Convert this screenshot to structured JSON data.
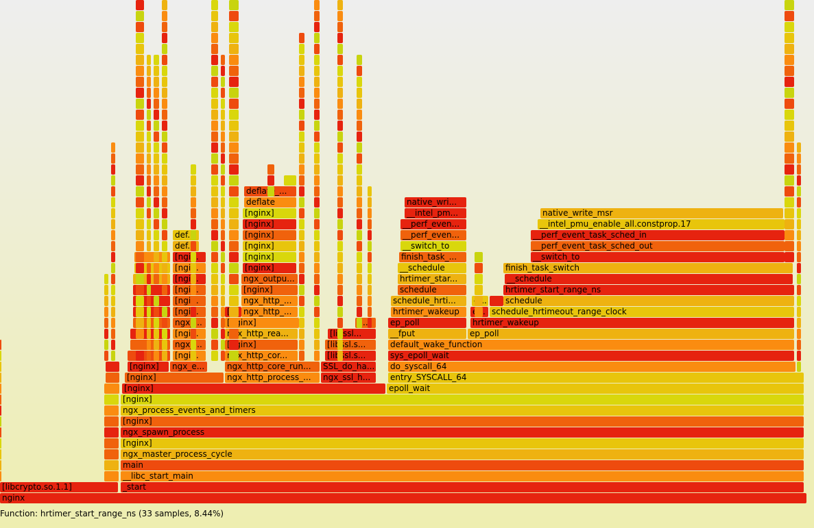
{
  "status": {
    "details": "Function: hrtimer_start_range_ns (33 samples, 8.44%)"
  },
  "palette": {
    "background_top": "#eeeeee",
    "background_bottom": "#eeeeb0",
    "frame_colors": [
      "#e6230f",
      "#f0620c",
      "#fa8c10",
      "#eeb211",
      "#e8c50c",
      "#d9d70c",
      "#ee4b0e",
      "#c8d40f"
    ]
  },
  "flamegraph": {
    "frames": [
      {
        "d": 0,
        "x0": 0,
        "x1": 1176,
        "label": "nginx",
        "c": 0
      },
      {
        "d": 1,
        "x0": 0,
        "x1": 172,
        "label": "[libcrypto.so.1.1]",
        "c": 0
      },
      {
        "d": 1,
        "x0": 176,
        "x1": 1172,
        "label": "_start",
        "c": 0
      },
      {
        "d": 2,
        "x0": 152,
        "x1": 173,
        "label": "",
        "c": 2
      },
      {
        "d": 2,
        "x0": 176,
        "x1": 1172,
        "label": "__libc_start_main",
        "c": 2
      },
      {
        "d": 3,
        "x0": 152,
        "x1": 173,
        "label": "",
        "c": 3
      },
      {
        "d": 3,
        "x0": 176,
        "x1": 1172,
        "label": "main",
        "c": 6
      },
      {
        "d": 4,
        "x0": 152,
        "x1": 173,
        "label": "",
        "c": 1
      },
      {
        "d": 4,
        "x0": 176,
        "x1": 1172,
        "label": "ngx_master_process_cycle",
        "c": 3
      },
      {
        "d": 5,
        "x0": 152,
        "x1": 173,
        "label": "",
        "c": 1
      },
      {
        "d": 5,
        "x0": 176,
        "x1": 1172,
        "label": "[nginx]",
        "c": 4
      },
      {
        "d": 6,
        "x0": 152,
        "x1": 173,
        "label": "",
        "c": 0
      },
      {
        "d": 6,
        "x0": 176,
        "x1": 1172,
        "label": "ngx_spawn_process",
        "c": 0
      },
      {
        "d": 7,
        "x0": 152,
        "x1": 173,
        "label": "",
        "c": 1
      },
      {
        "d": 7,
        "x0": 176,
        "x1": 1172,
        "label": "[nginx]",
        "c": 1
      },
      {
        "d": 8,
        "x0": 152,
        "x1": 173,
        "label": "",
        "c": 2
      },
      {
        "d": 8,
        "x0": 176,
        "x1": 1172,
        "label": "ngx_process_events_and_timers",
        "c": 4
      },
      {
        "d": 9,
        "x0": 152,
        "x1": 173,
        "label": "",
        "c": 5
      },
      {
        "d": 9,
        "x0": 176,
        "x1": 1172,
        "label": "[nginx]",
        "c": 5
      },
      {
        "d": 10,
        "x0": 152,
        "x1": 174,
        "label": "",
        "c": 2
      },
      {
        "d": 10,
        "x0": 178,
        "x1": 562,
        "label": "[nginx]",
        "c": 0
      },
      {
        "d": 10,
        "x0": 564,
        "x1": 1172,
        "label": "epoll_wait",
        "c": 4
      },
      {
        "d": 11,
        "x0": 154,
        "x1": 174,
        "label": "",
        "c": 1
      },
      {
        "d": 11,
        "x0": 182,
        "x1": 326,
        "label": "[nginx]",
        "c": 1
      },
      {
        "d": 11,
        "x0": 328,
        "x1": 466,
        "label": "ngx_http_process_...",
        "c": 2
      },
      {
        "d": 11,
        "x0": 468,
        "x1": 548,
        "label": "ngx_ssl_h...",
        "c": 0
      },
      {
        "d": 11,
        "x0": 566,
        "x1": 1172,
        "label": "entry_SYSCALL_64",
        "c": 4
      },
      {
        "d": 12,
        "x0": 154,
        "x1": 174,
        "label": "",
        "c": 0
      },
      {
        "d": 12,
        "x0": 186,
        "x1": 246,
        "label": "[nginx]",
        "c": 0
      },
      {
        "d": 12,
        "x0": 248,
        "x1": 302,
        "label": "ngx_e...",
        "c": 6
      },
      {
        "d": 12,
        "x0": 328,
        "x1": 466,
        "label": "ngx_http_core_run...",
        "c": 1
      },
      {
        "d": 12,
        "x0": 468,
        "x1": 548,
        "label": "SSL_do_ha...",
        "c": 0
      },
      {
        "d": 12,
        "x0": 566,
        "x1": 1160,
        "label": "do_syscall_64",
        "c": 2
      },
      {
        "d": 13,
        "x0": 186,
        "x1": 248,
        "label": "",
        "c": 6
      },
      {
        "d": 13,
        "x0": 252,
        "x1": 300,
        "label": "[ngi...",
        "c": 2
      },
      {
        "d": 13,
        "x0": 328,
        "x1": 434,
        "label": "ngx_http_cor...",
        "c": 2
      },
      {
        "d": 13,
        "x0": 474,
        "x1": 548,
        "label": "[libssl.s...",
        "c": 0
      },
      {
        "d": 13,
        "x0": 566,
        "x1": 1158,
        "label": "sys_epoll_wait",
        "c": 0
      },
      {
        "d": 14,
        "x0": 190,
        "x1": 248,
        "label": "",
        "c": 1
      },
      {
        "d": 14,
        "x0": 252,
        "x1": 300,
        "label": "ngx_...",
        "c": 1
      },
      {
        "d": 14,
        "x0": 328,
        "x1": 434,
        "label": "[nginx]",
        "c": 1
      },
      {
        "d": 14,
        "x0": 474,
        "x1": 548,
        "label": "[libssl.s...",
        "c": 1
      },
      {
        "d": 14,
        "x0": 566,
        "x1": 1158,
        "label": "default_wake_function",
        "c": 2
      },
      {
        "d": 15,
        "x0": 190,
        "x1": 248,
        "label": "",
        "c": 0
      },
      {
        "d": 15,
        "x0": 252,
        "x1": 300,
        "label": "[ngi...",
        "c": 2
      },
      {
        "d": 15,
        "x0": 328,
        "x1": 434,
        "label": "ngx_http_rea...",
        "c": 3
      },
      {
        "d": 15,
        "x0": 478,
        "x1": 548,
        "label": "[libssl...",
        "c": 0
      },
      {
        "d": 15,
        "x0": 566,
        "x1": 680,
        "label": "__fput",
        "c": 3
      },
      {
        "d": 15,
        "x0": 682,
        "x1": 1158,
        "label": "ep_poll",
        "c": 3
      },
      {
        "d": 16,
        "x0": 194,
        "x1": 248,
        "label": "",
        "c": 1
      },
      {
        "d": 16,
        "x0": 252,
        "x1": 300,
        "label": "ngx_...",
        "c": 1
      },
      {
        "d": 16,
        "x0": 328,
        "x1": 436,
        "label": "[nginx]",
        "c": 2
      },
      {
        "d": 16,
        "x0": 518,
        "x1": 548,
        "label": "[l...",
        "c": 1
      },
      {
        "d": 16,
        "x0": 566,
        "x1": 680,
        "label": "ep_poll",
        "c": 0
      },
      {
        "d": 16,
        "x0": 686,
        "x1": 1158,
        "label": "hrtimer_wakeup",
        "c": 0
      },
      {
        "d": 17,
        "x0": 194,
        "x1": 248,
        "label": "",
        "c": 0
      },
      {
        "d": 17,
        "x0": 252,
        "x1": 300,
        "label": "[ngi...",
        "c": 1
      },
      {
        "d": 17,
        "x0": 328,
        "x1": 352,
        "label": "[...",
        "c": 0
      },
      {
        "d": 17,
        "x0": 352,
        "x1": 434,
        "label": "ngx_http_...",
        "c": 2
      },
      {
        "d": 17,
        "x0": 570,
        "x1": 680,
        "label": "hrtimer_wakeup",
        "c": 2
      },
      {
        "d": 17,
        "x0": 686,
        "x1": 712,
        "label": "e...",
        "c": 0
      },
      {
        "d": 17,
        "x0": 714,
        "x1": 1158,
        "label": "schedule_hrtimeout_range_clock",
        "c": 4
      },
      {
        "d": 18,
        "x0": 194,
        "x1": 248,
        "label": "",
        "c": 0
      },
      {
        "d": 18,
        "x0": 252,
        "x1": 300,
        "label": "[ngi...",
        "c": 1
      },
      {
        "d": 18,
        "x0": 352,
        "x1": 434,
        "label": "ngx_http_...",
        "c": 2
      },
      {
        "d": 18,
        "x0": 570,
        "x1": 680,
        "label": "schedule_hrti...",
        "c": 3
      },
      {
        "d": 18,
        "x0": 688,
        "x1": 712,
        "label": "e...",
        "c": 4
      },
      {
        "d": 18,
        "x0": 714,
        "x1": 734,
        "label": "",
        "c": 0
      },
      {
        "d": 18,
        "x0": 734,
        "x1": 1158,
        "label": "schedule",
        "c": 3
      },
      {
        "d": 19,
        "x0": 194,
        "x1": 248,
        "label": "",
        "c": 0
      },
      {
        "d": 19,
        "x0": 252,
        "x1": 300,
        "label": "[ngi...",
        "c": 1
      },
      {
        "d": 19,
        "x0": 352,
        "x1": 434,
        "label": "[nginx]",
        "c": 1
      },
      {
        "d": 19,
        "x0": 580,
        "x1": 680,
        "label": "schedule",
        "c": 1
      },
      {
        "d": 19,
        "x0": 734,
        "x1": 1158,
        "label": "hrtimer_start_range_ns",
        "c": 0
      },
      {
        "d": 20,
        "x0": 194,
        "x1": 248,
        "label": "",
        "c": 3
      },
      {
        "d": 20,
        "x0": 252,
        "x1": 300,
        "label": "[ngi...",
        "c": 0
      },
      {
        "d": 20,
        "x0": 352,
        "x1": 434,
        "label": "ngx_outpu...",
        "c": 1
      },
      {
        "d": 20,
        "x0": 580,
        "x1": 680,
        "label": "hrtimer_star...",
        "c": 3
      },
      {
        "d": 20,
        "x0": 736,
        "x1": 1156,
        "label": "__schedule",
        "c": 0
      },
      {
        "d": 21,
        "x0": 196,
        "x1": 248,
        "label": "",
        "c": 4
      },
      {
        "d": 21,
        "x0": 252,
        "x1": 300,
        "label": "[ngi...",
        "c": 2
      },
      {
        "d": 21,
        "x0": 354,
        "x1": 432,
        "label": "[nginx]",
        "c": 0
      },
      {
        "d": 21,
        "x0": 580,
        "x1": 680,
        "label": "__schedule",
        "c": 4
      },
      {
        "d": 21,
        "x0": 734,
        "x1": 1156,
        "label": "finish_task_switch",
        "c": 3
      },
      {
        "d": 22,
        "x0": 196,
        "x1": 248,
        "label": "",
        "c": 2
      },
      {
        "d": 22,
        "x0": 252,
        "x1": 300,
        "label": "[ngi...",
        "c": 0
      },
      {
        "d": 22,
        "x0": 354,
        "x1": 432,
        "label": "[nginx]",
        "c": 5
      },
      {
        "d": 22,
        "x0": 582,
        "x1": 680,
        "label": "finish_task_...",
        "c": 1
      },
      {
        "d": 22,
        "x0": 774,
        "x1": 1144,
        "label": "__switch_to",
        "c": 0
      },
      {
        "d": 23,
        "x0": 252,
        "x1": 290,
        "label": "def...",
        "c": 3
      },
      {
        "d": 23,
        "x0": 354,
        "x1": 432,
        "label": "[nginx]",
        "c": 4
      },
      {
        "d": 23,
        "x0": 584,
        "x1": 680,
        "label": "__switch_to",
        "c": 5
      },
      {
        "d": 23,
        "x0": 774,
        "x1": 1144,
        "label": "__perf_event_task_sched_out",
        "c": 1
      },
      {
        "d": 24,
        "x0": 252,
        "x1": 290,
        "label": "def...",
        "c": 4
      },
      {
        "d": 24,
        "x0": 354,
        "x1": 432,
        "label": "[nginx]",
        "c": 1
      },
      {
        "d": 24,
        "x0": 584,
        "x1": 680,
        "label": "__perf_even...",
        "c": 1
      },
      {
        "d": 24,
        "x0": 774,
        "x1": 1144,
        "label": "__perf_event_task_sched_in",
        "c": 0
      },
      {
        "d": 25,
        "x0": 354,
        "x1": 432,
        "label": "[nginx]",
        "c": 0
      },
      {
        "d": 25,
        "x0": 584,
        "x1": 680,
        "label": "__perf_even...",
        "c": 0
      },
      {
        "d": 25,
        "x0": 784,
        "x1": 1144,
        "label": "__intel_pmu_enable_all.constprop.17",
        "c": 4
      },
      {
        "d": 26,
        "x0": 354,
        "x1": 432,
        "label": "[nginx]",
        "c": 5
      },
      {
        "d": 26,
        "x0": 590,
        "x1": 680,
        "label": "__intel_pm...",
        "c": 0
      },
      {
        "d": 26,
        "x0": 788,
        "x1": 1142,
        "label": "native_write_msr",
        "c": 3
      },
      {
        "d": 27,
        "x0": 356,
        "x1": 432,
        "label": "deflate",
        "c": 2
      },
      {
        "d": 27,
        "x0": 590,
        "x1": 680,
        "label": "native_wri...",
        "c": 0
      },
      {
        "d": 28,
        "x0": 356,
        "x1": 432,
        "label": "deflate_...",
        "c": 6
      }
    ]
  }
}
